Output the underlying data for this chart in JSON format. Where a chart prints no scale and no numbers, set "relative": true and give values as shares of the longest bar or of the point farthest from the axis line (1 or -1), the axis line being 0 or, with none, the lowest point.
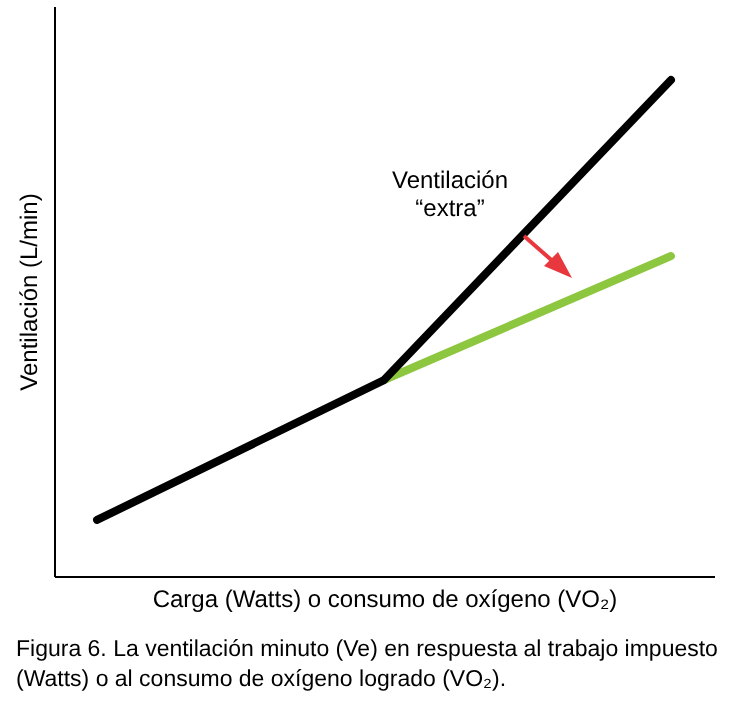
{
  "chart_data": {
    "type": "line",
    "relative": true,
    "xlabel": "Carga (Watts) o consumo de oxígeno (VO₂)",
    "ylabel": "Ventilación (L/min)",
    "categories": [
      null,
      null,
      null
    ],
    "series": [
      {
        "color": "#8dc63f",
        "values": [
          null,
          0.395,
          0.645
        ]
      },
      {
        "color": "#000000",
        "values": [
          0.113,
          0.395,
          1
        ]
      }
    ],
    "annotations": [
      "Ventilación\n“extra”",
      "Figura 6. La ventilación minuto (Ve) en respuesta al trabajo impuesto (Watts) o al consumo de oxígeno logrado (VO₂)."
    ]
  }
}
